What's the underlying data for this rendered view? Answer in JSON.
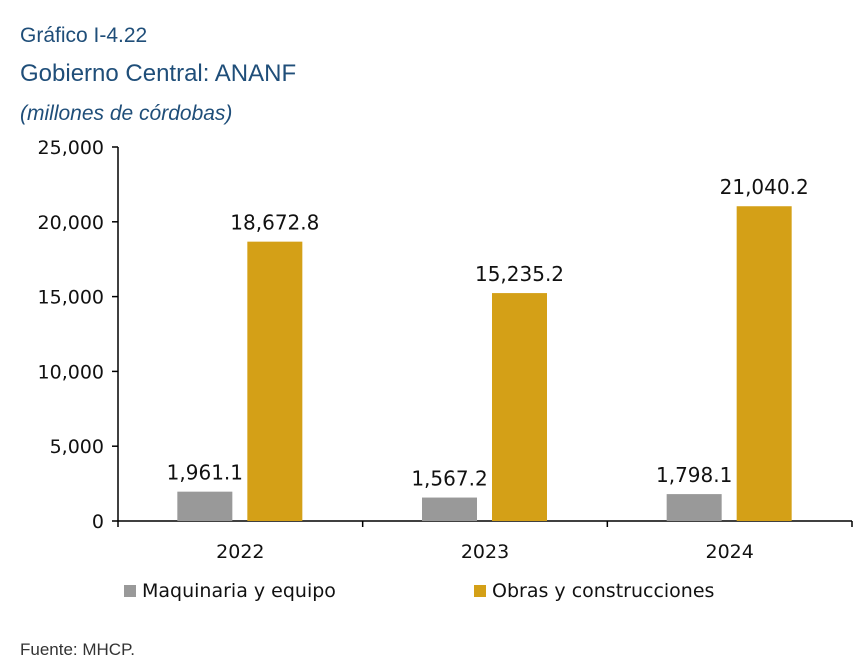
{
  "header": {
    "figure_label": "Gráfico I-4.22",
    "title": "Gobierno Central: ANANF",
    "unit": "(millones de córdobas)"
  },
  "footer": {
    "source": "Fuente: MHCP."
  },
  "colors": {
    "heading": "#1f4e79",
    "maquinaria": "#999999",
    "obras": "#d4a017"
  },
  "chart_data": {
    "type": "bar",
    "categories": [
      "2022",
      "2023",
      "2024"
    ],
    "series": [
      {
        "name": "Maquinaria y equipo",
        "values": [
          1961.1,
          1567.2,
          1798.1
        ],
        "labels": [
          "1,961.1",
          "1,567.2",
          "1,798.1"
        ],
        "color": "#999999"
      },
      {
        "name": "Obras y construcciones",
        "values": [
          18672.8,
          15235.2,
          21040.2
        ],
        "labels": [
          "18,672.8",
          "15,235.2",
          "21,040.2"
        ],
        "color": "#d4a017"
      }
    ],
    "y_ticks": [
      0,
      5000,
      10000,
      15000,
      20000,
      25000
    ],
    "y_tick_labels": [
      "0",
      "5,000",
      "10,000",
      "15,000",
      "20,000",
      "25,000"
    ],
    "ylim": [
      0,
      25000
    ],
    "grid": false,
    "legend_position": "bottom"
  }
}
